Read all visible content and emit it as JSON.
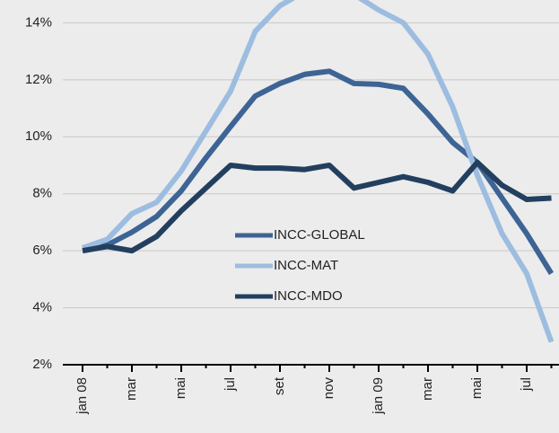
{
  "chart_data": {
    "type": "line",
    "categories": [
      "jan 08",
      null,
      "mar",
      null,
      "mai",
      null,
      "jul",
      null,
      "set",
      null,
      "nov",
      null,
      "jan 09",
      null,
      "mar",
      null,
      "mai",
      null,
      "jul",
      null
    ],
    "series": [
      {
        "name": "INCC-GLOBAL",
        "color": "#3d6494",
        "values": [
          6.09,
          6.2,
          6.65,
          7.2,
          8.1,
          9.26,
          10.36,
          11.43,
          11.87,
          12.19,
          12.3,
          11.87,
          11.84,
          11.7,
          10.8,
          9.8,
          9.1,
          7.85,
          6.6,
          5.2
        ]
      },
      {
        "name": "INCC-MAT",
        "color": "#9dbde0",
        "values": [
          6.1,
          6.4,
          7.3,
          7.7,
          8.8,
          10.2,
          11.6,
          13.7,
          14.6,
          15.1,
          15.3,
          15.0,
          14.45,
          14.0,
          12.9,
          11.05,
          8.65,
          6.6,
          5.2,
          2.8
        ]
      },
      {
        "name": "INCC-MDO",
        "color": "#233f5f",
        "values": [
          6.0,
          6.15,
          6.0,
          6.5,
          7.4,
          8.2,
          9.0,
          8.9,
          8.9,
          8.85,
          9.0,
          8.2,
          8.4,
          8.6,
          8.4,
          8.1,
          9.1,
          8.3,
          7.8,
          7.85
        ]
      }
    ],
    "ylim": [
      2,
      14.8
    ],
    "yticks": [
      {
        "value": 2,
        "label": "2%"
      },
      {
        "value": 4,
        "label": "4%"
      },
      {
        "value": 6,
        "label": "6%"
      },
      {
        "value": 8,
        "label": "8%"
      },
      {
        "value": 10,
        "label": "10%"
      },
      {
        "value": 12,
        "label": "12%"
      },
      {
        "value": 14,
        "label": "14%"
      }
    ],
    "grid": true
  }
}
